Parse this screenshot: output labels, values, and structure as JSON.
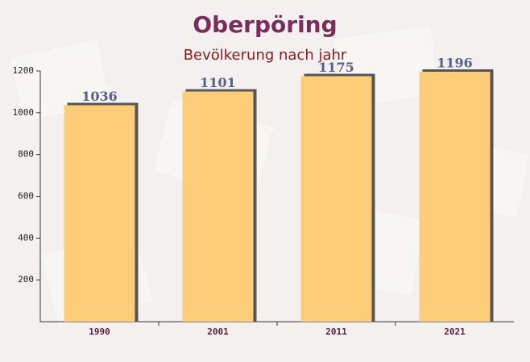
{
  "chart_data": {
    "type": "bar",
    "title": "Oberpöring",
    "subtitle": "Bevölkerung nach jahr",
    "categories": [
      "1990",
      "2001",
      "2011",
      "2021"
    ],
    "values": [
      1036,
      1101,
      1175,
      1196
    ],
    "color": "#fec96c",
    "ylim": [
      0,
      1200
    ],
    "yticks": [
      200,
      400,
      600,
      800,
      1000,
      1200
    ]
  }
}
